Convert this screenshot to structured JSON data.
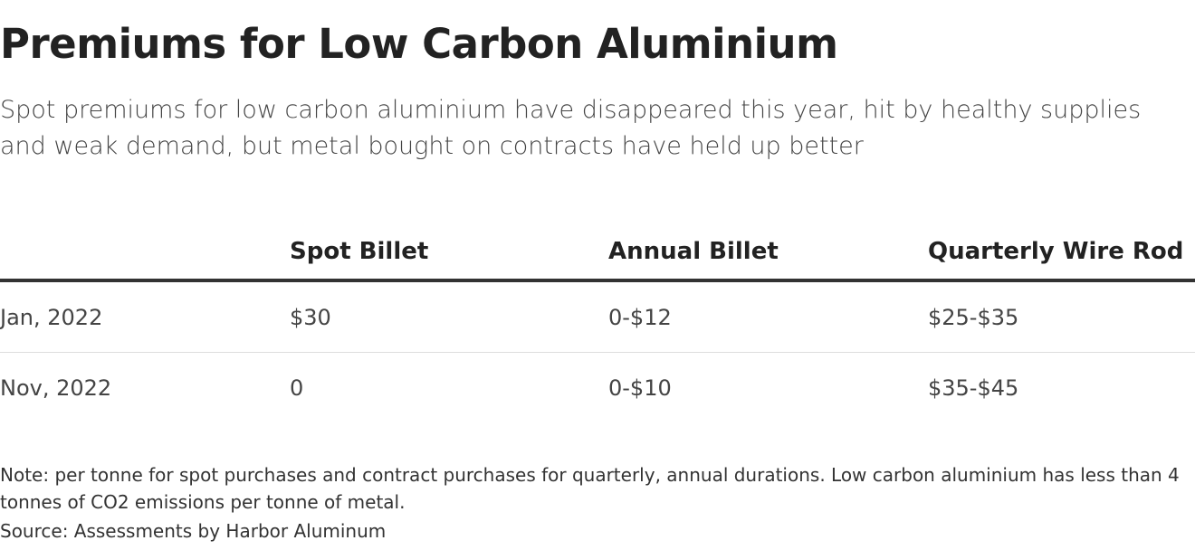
{
  "header": {
    "title": "Premiums for Low Carbon Aluminium",
    "subtitle": "Spot premiums for low carbon aluminium have disappeared this year, hit by healthy supplies and weak demand, but metal bought on contracts have held up better"
  },
  "table": {
    "columns": [
      "",
      "Spot Billet",
      "Annual Billet",
      "Quarterly Wire Rod"
    ],
    "rows": [
      [
        "Jan, 2022",
        "$30",
        "0-$12",
        "$25-$35"
      ],
      [
        "Nov, 2022",
        "0",
        "0-$10",
        "$35-$45"
      ]
    ]
  },
  "footer": {
    "note": "Note: per tonne for spot purchases and contract purchases for quarterly, annual durations. Low carbon aluminium has less than 4 tonnes of CO2 emissions per tonne of metal.",
    "source": "Source: Assessments by Harbor Aluminum"
  }
}
